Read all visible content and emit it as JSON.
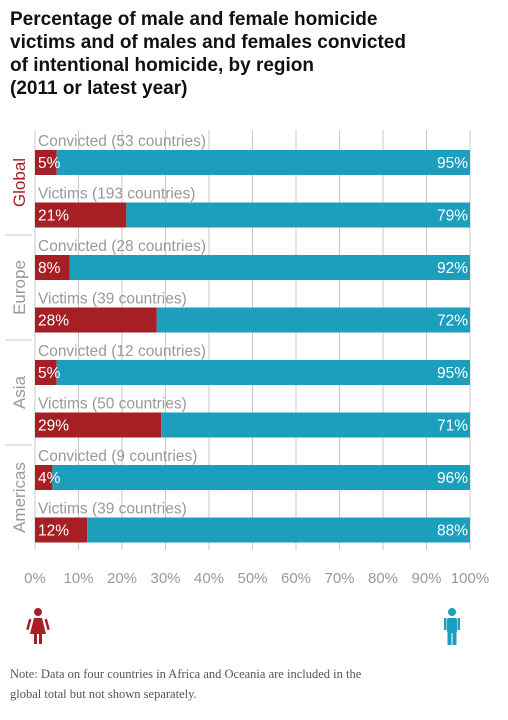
{
  "title_lines": [
    "Percentage of male and female homicide",
    "victims and of males and females convicted",
    "of intentional homicide, by region",
    "(2011 or latest year)"
  ],
  "note_lines": [
    "Note: Data on four countries in Africa and Oceania are included in the",
    "global total but not shown separately."
  ],
  "colors": {
    "female": "#a51f24",
    "male": "#1b9fbd",
    "region_global": "#a51f24",
    "region_other": "#999999",
    "grid": "#bbbbbb"
  },
  "icons": {
    "female": "female-person-icon",
    "male": "male-person-icon"
  },
  "chart_data": {
    "type": "bar",
    "stacked": true,
    "orientation": "horizontal",
    "xlim": [
      0,
      100
    ],
    "x_ticks": [
      "0%",
      "10%",
      "20%",
      "30%",
      "40%",
      "50%",
      "60%",
      "70%",
      "80%",
      "90%",
      "100%"
    ],
    "groups": [
      {
        "region": "Global",
        "rows": [
          {
            "label": "Convicted (53 countries)",
            "female": 5,
            "male": 95,
            "female_text": "5%",
            "male_text": "95%"
          },
          {
            "label": "Victims (193 countries)",
            "female": 21,
            "male": 79,
            "female_text": "21%",
            "male_text": "79%"
          }
        ]
      },
      {
        "region": "Europe",
        "rows": [
          {
            "label": "Convicted (28 countries)",
            "female": 8,
            "male": 92,
            "female_text": "8%",
            "male_text": "92%"
          },
          {
            "label": "Victims (39 countries)",
            "female": 28,
            "male": 72,
            "female_text": "28%",
            "male_text": "72%"
          }
        ]
      },
      {
        "region": "Asia",
        "rows": [
          {
            "label": "Convicted (12 countries)",
            "female": 5,
            "male": 95,
            "female_text": "5%",
            "male_text": "95%"
          },
          {
            "label": "Victims (50 countries)",
            "female": 29,
            "male": 71,
            "female_text": "29%",
            "male_text": "71%"
          }
        ]
      },
      {
        "region": "Americas",
        "rows": [
          {
            "label": "Convicted (9 countries)",
            "female": 4,
            "male": 96,
            "female_text": "4%",
            "male_text": "96%"
          },
          {
            "label": "Victims (39 countries)",
            "female": 12,
            "male": 88,
            "female_text": "12%",
            "male_text": "88%"
          }
        ]
      }
    ]
  }
}
